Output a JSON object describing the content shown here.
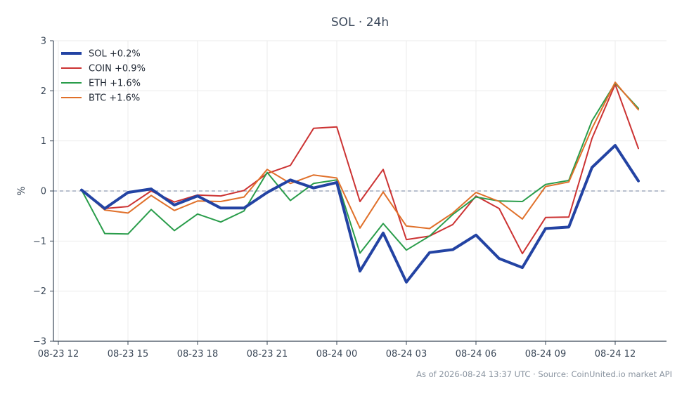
{
  "chart_data": {
    "type": "line",
    "title": "SOL · 24h",
    "xlabel": "",
    "ylabel": "%",
    "xlim": [
      "2026-08-23 12:00",
      "2026-08-24 14:15"
    ],
    "ylim": [
      -3,
      3
    ],
    "x_ticks": [
      "08-23 12",
      "08-23 15",
      "08-23 18",
      "08-23 21",
      "08-24 00",
      "08-24 03",
      "08-24 06",
      "08-24 09",
      "08-24 12"
    ],
    "y_ticks": [
      3,
      2,
      1,
      0,
      -1,
      -2,
      -3
    ],
    "y_tick_labels": [
      "3",
      "2",
      "1",
      "0",
      "−1",
      "−2",
      "−3"
    ],
    "grid": true,
    "baseline": 0,
    "legend_position": "top-left",
    "x": [
      "2026-08-23 13:00",
      "2026-08-23 14:00",
      "2026-08-23 15:00",
      "2026-08-23 16:00",
      "2026-08-23 17:00",
      "2026-08-23 18:00",
      "2026-08-23 19:00",
      "2026-08-23 20:00",
      "2026-08-23 21:00",
      "2026-08-23 22:00",
      "2026-08-23 23:00",
      "2026-08-24 00:00",
      "2026-08-24 01:00",
      "2026-08-24 02:00",
      "2026-08-24 03:00",
      "2026-08-24 04:00",
      "2026-08-24 05:00",
      "2026-08-24 06:00",
      "2026-08-24 07:00",
      "2026-08-24 08:00",
      "2026-08-24 09:00",
      "2026-08-24 10:00",
      "2026-08-24 11:00",
      "2026-08-24 12:00",
      "2026-08-24 13:00"
    ],
    "series": [
      {
        "name": "SOL +0.2%",
        "color": "#2343a3",
        "width": 4,
        "values": [
          0.02,
          -0.35,
          -0.03,
          0.04,
          -0.28,
          -0.1,
          -0.34,
          -0.34,
          -0.03,
          0.22,
          0.06,
          0.17,
          -1.6,
          -0.84,
          -1.82,
          -1.23,
          -1.17,
          -0.88,
          -1.35,
          -1.53,
          -0.75,
          -0.72,
          0.47,
          0.91,
          0.2
        ]
      },
      {
        "name": "COIN +0.9%",
        "color": "#cc3333",
        "width": 2,
        "values": [
          0.02,
          -0.35,
          -0.31,
          0.0,
          -0.22,
          -0.08,
          -0.1,
          0.01,
          0.35,
          0.51,
          1.25,
          1.28,
          -0.21,
          0.43,
          -0.97,
          -0.9,
          -0.67,
          -0.1,
          -0.35,
          -1.25,
          -0.53,
          -0.52,
          1.05,
          2.13,
          0.85
        ]
      },
      {
        "name": "ETH +1.6%",
        "color": "#2a9d4b",
        "width": 2,
        "values": [
          0.02,
          -0.85,
          -0.86,
          -0.37,
          -0.79,
          -0.46,
          -0.62,
          -0.4,
          0.37,
          -0.19,
          0.15,
          0.22,
          -1.24,
          -0.65,
          -1.18,
          -0.9,
          -0.47,
          -0.12,
          -0.2,
          -0.21,
          0.13,
          0.21,
          1.4,
          2.15,
          1.65
        ]
      },
      {
        "name": "BTC +1.6%",
        "color": "#e0702a",
        "width": 2,
        "values": [
          0.02,
          -0.38,
          -0.44,
          -0.09,
          -0.39,
          -0.2,
          -0.21,
          -0.12,
          0.43,
          0.15,
          0.32,
          0.26,
          -0.74,
          -0.02,
          -0.7,
          -0.75,
          -0.44,
          -0.03,
          -0.21,
          -0.56,
          0.09,
          0.18,
          1.25,
          2.17,
          1.62
        ]
      }
    ]
  },
  "footer": {
    "text": "As of 2026-08-24 13:37 UTC · Source: CoinUnited.io market API"
  }
}
